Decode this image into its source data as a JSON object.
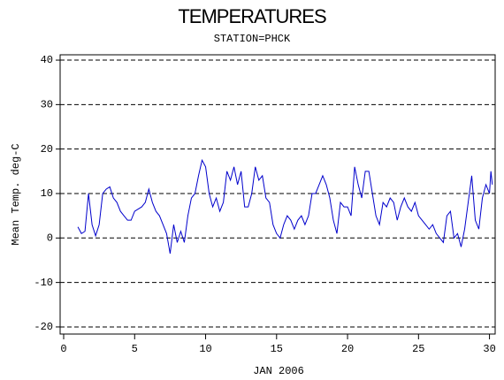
{
  "chart_data": {
    "type": "line",
    "title": "TEMPERATURES",
    "subtitle": "STATION=PHCK",
    "x_label": "JAN 2006",
    "y_label": "Mean Temp. deg-C",
    "color": "#0000cc",
    "grid": true,
    "xlim": [
      -0.25,
      30.4
    ],
    "ylim": [
      -21.6,
      41.2
    ],
    "xticks": [
      0,
      5,
      10,
      15,
      20,
      25,
      30
    ],
    "yticks": [
      -20,
      -10,
      0,
      10,
      20,
      30,
      40
    ],
    "x": [
      1,
      1.25,
      1.5,
      1.75,
      2,
      2.25,
      2.5,
      2.75,
      3,
      3.25,
      3.5,
      3.75,
      4,
      4.25,
      4.5,
      4.75,
      5,
      5.25,
      5.5,
      5.75,
      6,
      6.25,
      6.5,
      6.75,
      7,
      7.25,
      7.5,
      7.75,
      8,
      8.25,
      8.5,
      8.75,
      9,
      9.25,
      9.5,
      9.75,
      10,
      10.25,
      10.5,
      10.75,
      11,
      11.25,
      11.5,
      11.75,
      12,
      12.25,
      12.5,
      12.75,
      13,
      13.25,
      13.5,
      13.75,
      14,
      14.25,
      14.5,
      14.75,
      15,
      15.25,
      15.5,
      15.75,
      16,
      16.25,
      16.5,
      16.75,
      17,
      17.25,
      17.5,
      17.75,
      18,
      18.25,
      18.5,
      18.75,
      19,
      19.25,
      19.5,
      19.75,
      20,
      20.25,
      20.5,
      20.75,
      21,
      21.25,
      21.5,
      21.75,
      22,
      22.25,
      22.5,
      22.75,
      23,
      23.25,
      23.5,
      23.75,
      24,
      24.25,
      24.5,
      24.75,
      25,
      25.25,
      25.5,
      25.75,
      26,
      26.25,
      26.5,
      26.75,
      27,
      27.25,
      27.5,
      27.75,
      28,
      28.25,
      28.5,
      28.75,
      29,
      29.25,
      29.5,
      29.75,
      30,
      30.1,
      30.2
    ],
    "values": [
      2.5,
      1,
      1.5,
      10,
      3,
      0.5,
      3,
      10,
      11,
      11.5,
      9,
      8,
      6,
      5,
      4,
      4,
      6,
      6.5,
      7,
      8,
      11,
      8,
      6,
      5,
      3,
      1,
      -3.5,
      3,
      -1,
      1.5,
      -1,
      5,
      9,
      10,
      14,
      17.5,
      16,
      10,
      7,
      9,
      6,
      8,
      15,
      13,
      16,
      12,
      15,
      7,
      7,
      10,
      16,
      13,
      14,
      9,
      8,
      3,
      1,
      0,
      3,
      5,
      4,
      2,
      4,
      5,
      3,
      5,
      10,
      10,
      12,
      14,
      12,
      9,
      4,
      1,
      8,
      7,
      7,
      5,
      16,
      12,
      9,
      15,
      15,
      10,
      5,
      3,
      8,
      7,
      9,
      8,
      4,
      7,
      9,
      7,
      6,
      8,
      5,
      4,
      3,
      2,
      3,
      1,
      0,
      -1,
      5,
      6,
      0,
      1,
      -2,
      2,
      8,
      14,
      4,
      2,
      9,
      12,
      10,
      15,
      12
    ]
  }
}
